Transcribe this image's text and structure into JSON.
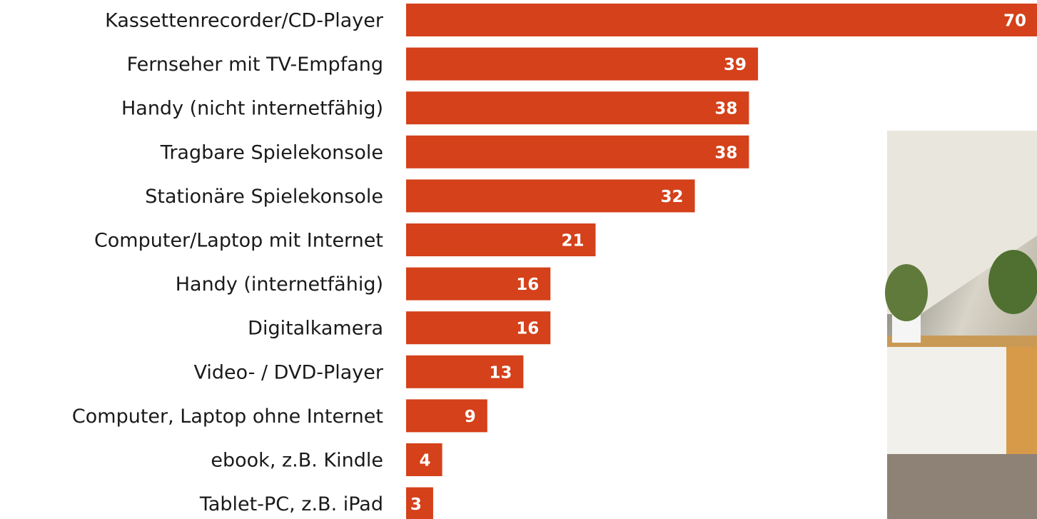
{
  "chart_data": {
    "type": "bar",
    "orientation": "horizontal",
    "categories": [
      "Kassettenrecorder/CD-Player",
      "Fernseher mit TV-Empfang",
      "Handy (nicht internetfähig)",
      "Tragbare Spielekonsole",
      "Stationäre Spielekonsole",
      "Computer/Laptop mit Internet",
      "Handy (internetfähig)",
      "Digitalkamera",
      "Video- / DVD-Player",
      "Computer, Laptop ohne Internet",
      "ebook, z.B. Kindle",
      "Tablet-PC, z.B. iPad"
    ],
    "values": [
      70,
      39,
      38,
      38,
      32,
      21,
      16,
      16,
      13,
      9,
      4,
      3
    ],
    "color": "#d4411a"
  }
}
